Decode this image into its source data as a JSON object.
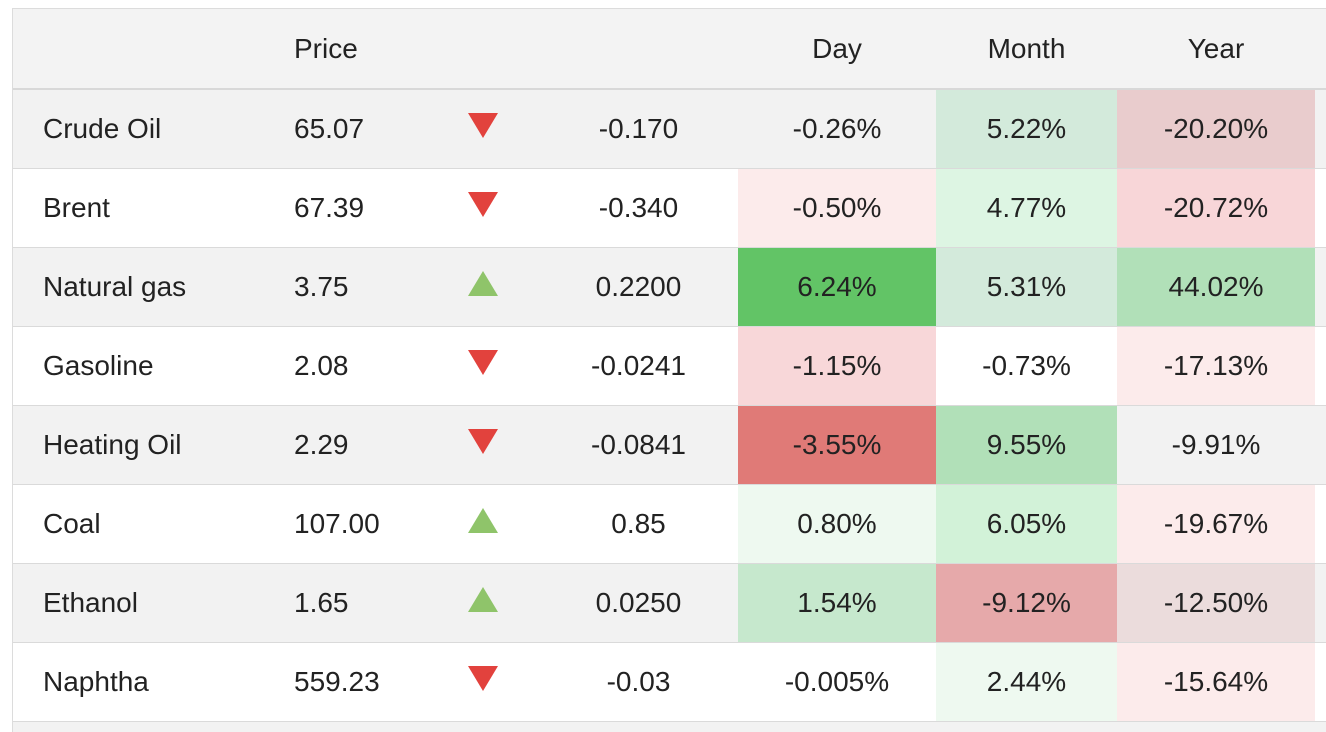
{
  "headers": {
    "name": "",
    "price": "Price",
    "arrow": "",
    "change": "",
    "day": "Day",
    "month": "Month",
    "year": "Year"
  },
  "colors": {
    "arrow_down": "#e2423d",
    "arrow_up": "#8fc46a"
  },
  "rows": [
    {
      "name": "Crude Oil",
      "price": "65.07",
      "dir": "down",
      "change": "-0.170",
      "day": "-0.26%",
      "month": "5.22%",
      "year": "-20.20%",
      "day_bg": "",
      "month_bg": "#d3eadb",
      "year_bg": "#e9cccd"
    },
    {
      "name": "Brent",
      "price": "67.39",
      "dir": "down",
      "change": "-0.340",
      "day": "-0.50%",
      "month": "4.77%",
      "year": "-20.72%",
      "day_bg": "#fcebeb",
      "month_bg": "#ddf5e3",
      "year_bg": "#f8d6d8"
    },
    {
      "name": "Natural gas",
      "price": "3.75",
      "dir": "up",
      "change": "0.2200",
      "day": "6.24%",
      "month": "5.31%",
      "year": "44.02%",
      "day_bg": "#62c466",
      "month_bg": "#d3eadb",
      "year_bg": "#b1e0b8"
    },
    {
      "name": "Gasoline",
      "price": "2.08",
      "dir": "down",
      "change": "-0.0241",
      "day": "-1.15%",
      "month": "-0.73%",
      "year": "-17.13%",
      "day_bg": "#f8d7d9",
      "month_bg": "#ffffff",
      "year_bg": "#fcebeb"
    },
    {
      "name": "Heating Oil",
      "price": "2.29",
      "dir": "down",
      "change": "-0.0841",
      "day": "-3.55%",
      "month": "9.55%",
      "year": "-9.91%",
      "day_bg": "#e07a77",
      "month_bg": "#b1e0b8",
      "year_bg": ""
    },
    {
      "name": "Coal",
      "price": "107.00",
      "dir": "up",
      "change": "0.85",
      "day": "0.80%",
      "month": "6.05%",
      "year": "-19.67%",
      "day_bg": "#eef9f0",
      "month_bg": "#d2f2d8",
      "year_bg": "#fcebeb"
    },
    {
      "name": "Ethanol",
      "price": "1.65",
      "dir": "up",
      "change": "0.0250",
      "day": "1.54%",
      "month": "-9.12%",
      "year": "-12.50%",
      "day_bg": "#c6e8cd",
      "month_bg": "#e6a9aa",
      "year_bg": "#ebdcdc"
    },
    {
      "name": "Naphtha",
      "price": "559.23",
      "dir": "down",
      "change": "-0.03",
      "day": "-0.005%",
      "month": "2.44%",
      "year": "-15.64%",
      "day_bg": "",
      "month_bg": "#eef9f0",
      "year_bg": "#fcebeb"
    }
  ]
}
